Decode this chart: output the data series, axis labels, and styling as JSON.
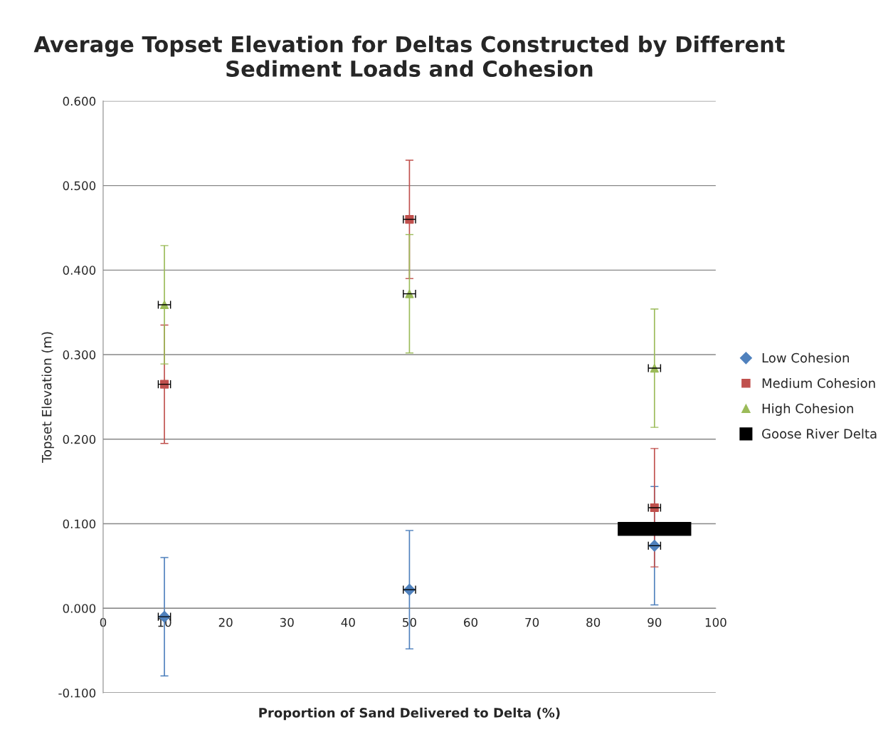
{
  "chart_data": {
    "type": "scatter",
    "title": "Average Topset Elevation for Deltas Constructed by Different Sediment Loads and Cohesion",
    "xlabel": "Proportion of Sand Delivered to Delta (%)",
    "ylabel": "Topset Elevation (m)",
    "xlim": [
      0,
      100
    ],
    "xticks": [
      0,
      10,
      20,
      30,
      40,
      50,
      60,
      70,
      80,
      90,
      100
    ],
    "ylim": [
      -0.1,
      0.6
    ],
    "yticks": [
      {
        "value": -0.1,
        "label": "-0.100"
      },
      {
        "value": 0,
        "label": "0.000"
      },
      {
        "value": 0.1,
        "label": "0.100"
      },
      {
        "value": 0.2,
        "label": "0.200"
      },
      {
        "value": 0.3,
        "label": "0.300"
      },
      {
        "value": 0.4,
        "label": "0.400"
      },
      {
        "value": 0.5,
        "label": "0.500"
      },
      {
        "value": 0.6,
        "label": "0.600"
      }
    ],
    "grid": "y",
    "legend": "right",
    "series": [
      {
        "name": "Low Cohesion",
        "color": "#4f81bd",
        "marker": "diamond",
        "x": [
          10,
          50,
          90
        ],
        "values": [
          -0.01,
          0.022,
          0.074
        ],
        "errors": [
          0.07,
          0.07,
          0.07
        ],
        "xerrors": [
          1,
          1,
          1
        ]
      },
      {
        "name": "Medium Cohesion",
        "color": "#c0504d",
        "marker": "square",
        "x": [
          10,
          50,
          90
        ],
        "values": [
          0.265,
          0.46,
          0.119
        ],
        "errors": [
          0.07,
          0.07,
          0.07
        ],
        "xerrors": [
          1,
          1,
          1
        ]
      },
      {
        "name": "High Cohesion",
        "color": "#9bbb59",
        "marker": "triangle",
        "x": [
          10,
          50,
          90
        ],
        "values": [
          0.359,
          0.372,
          0.284
        ],
        "errors": [
          0.07,
          0.07,
          0.07
        ],
        "xerrors": [
          1,
          1,
          1
        ]
      },
      {
        "name": "Goose River Delta",
        "color": "#000000",
        "type": "line",
        "marker": "none",
        "line_style": "solid",
        "x": [
          84,
          96
        ],
        "values": [
          0.094,
          0.094
        ]
      }
    ]
  }
}
